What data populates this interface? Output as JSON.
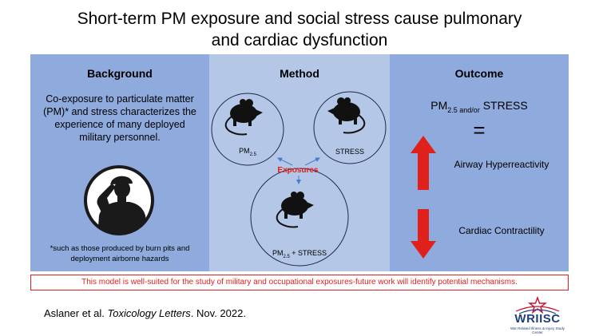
{
  "title": {
    "line1": "Short-term PM exposure and social stress cause pulmonary",
    "line2": "and cardiac dysfunction"
  },
  "background": {
    "heading": "Background",
    "line1": "Co-exposure to particulate matter",
    "line2": "(PM)* and stress characterizes the",
    "line3": "experience of many deployed",
    "line4": "military personnel.",
    "icon": "saluting-soldier-silhouette",
    "footnote1": "*such as those produced by burn pits and",
    "footnote2": "deployment airborne hazards"
  },
  "method": {
    "heading": "Method",
    "node_pm": {
      "base": "PM",
      "sub": "2.5"
    },
    "node_stress": "STRESS",
    "node_combo": {
      "base": "PM",
      "sub": "2.5",
      "suffix": " + STRESS"
    },
    "exposures": "Exposures",
    "icon": "mouse-silhouette"
  },
  "outcome": {
    "heading": "Outcome",
    "pm_base": "PM",
    "pm_sub": "2.5 and/or",
    "pm_stress": " STRESS",
    "equals": "=",
    "up_label": "Airway Hyperreactivity",
    "down_label": "Cardiac Contractility",
    "up_color": "#e0201b",
    "down_color": "#e0201b"
  },
  "conclusion": "This model is well-suited for the study of military and occupational exposures-future  work will identify potential mechanisms.",
  "citation": {
    "authors": "Aslaner et al. ",
    "journal": "Toxicology Letters",
    "date": ". Nov. 2022."
  },
  "logo": {
    "name": "WRIISC",
    "tagline": "War Related Illness & Injury Study Center"
  },
  "colors": {
    "panel_dark": "#8faadc",
    "panel_light": "#b4c7e7",
    "accent_red": "#e0201b",
    "arrow_blue": "#4a7cc9"
  }
}
